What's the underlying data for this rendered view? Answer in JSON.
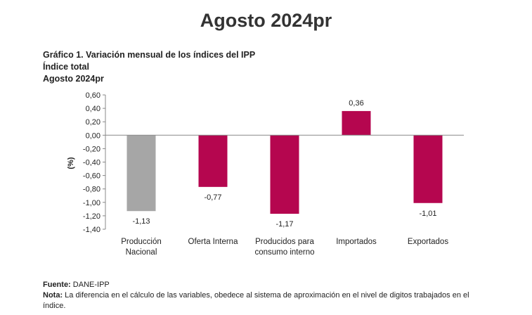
{
  "page": {
    "title": "Agosto 2024pr"
  },
  "chart_header": {
    "line1": "Gráfico 1. Variación mensual de los índices del IPP",
    "line2": "Índice total",
    "line3": "Agosto 2024pr"
  },
  "footer": {
    "source_label": "Fuente:",
    "source_text": "DANE-IPP",
    "note_label": "Nota:",
    "note_text": "La diferencia en el cálculo de las variables, obedece al sistema de aproximación en el nivel de digitos trabajados en el índice."
  },
  "chart_data": {
    "type": "bar",
    "title": "Gráfico 1. Variación mensual de los índices del IPP",
    "xlabel": "",
    "ylabel": "(%)",
    "ylim": [
      -1.4,
      0.6
    ],
    "yticks": [
      0.6,
      0.4,
      0.2,
      0.0,
      -0.2,
      -0.4,
      -0.6,
      -0.8,
      -1.0,
      -1.2,
      -1.4
    ],
    "ytick_labels": [
      "0,60",
      "0,40",
      "0,20",
      "0,00",
      "-0,20",
      "-0,40",
      "-0,60",
      "-0,80",
      "-1,00",
      "-1,20",
      "-1,40"
    ],
    "categories": [
      [
        "Producción",
        "Nacional"
      ],
      [
        "Oferta Interna"
      ],
      [
        "Producidos para",
        "consumo interno"
      ],
      [
        "Importados"
      ],
      [
        "Exportados"
      ]
    ],
    "values": [
      -1.13,
      -0.77,
      -1.17,
      0.36,
      -1.01
    ],
    "value_labels": [
      "-1,13",
      "-0,77",
      "-1,17",
      "0,36",
      "-1,01"
    ],
    "colors": [
      "#a6a6a6",
      "#b5064f",
      "#b5064f",
      "#b5064f",
      "#b5064f"
    ],
    "grid": false,
    "legend": "none"
  }
}
